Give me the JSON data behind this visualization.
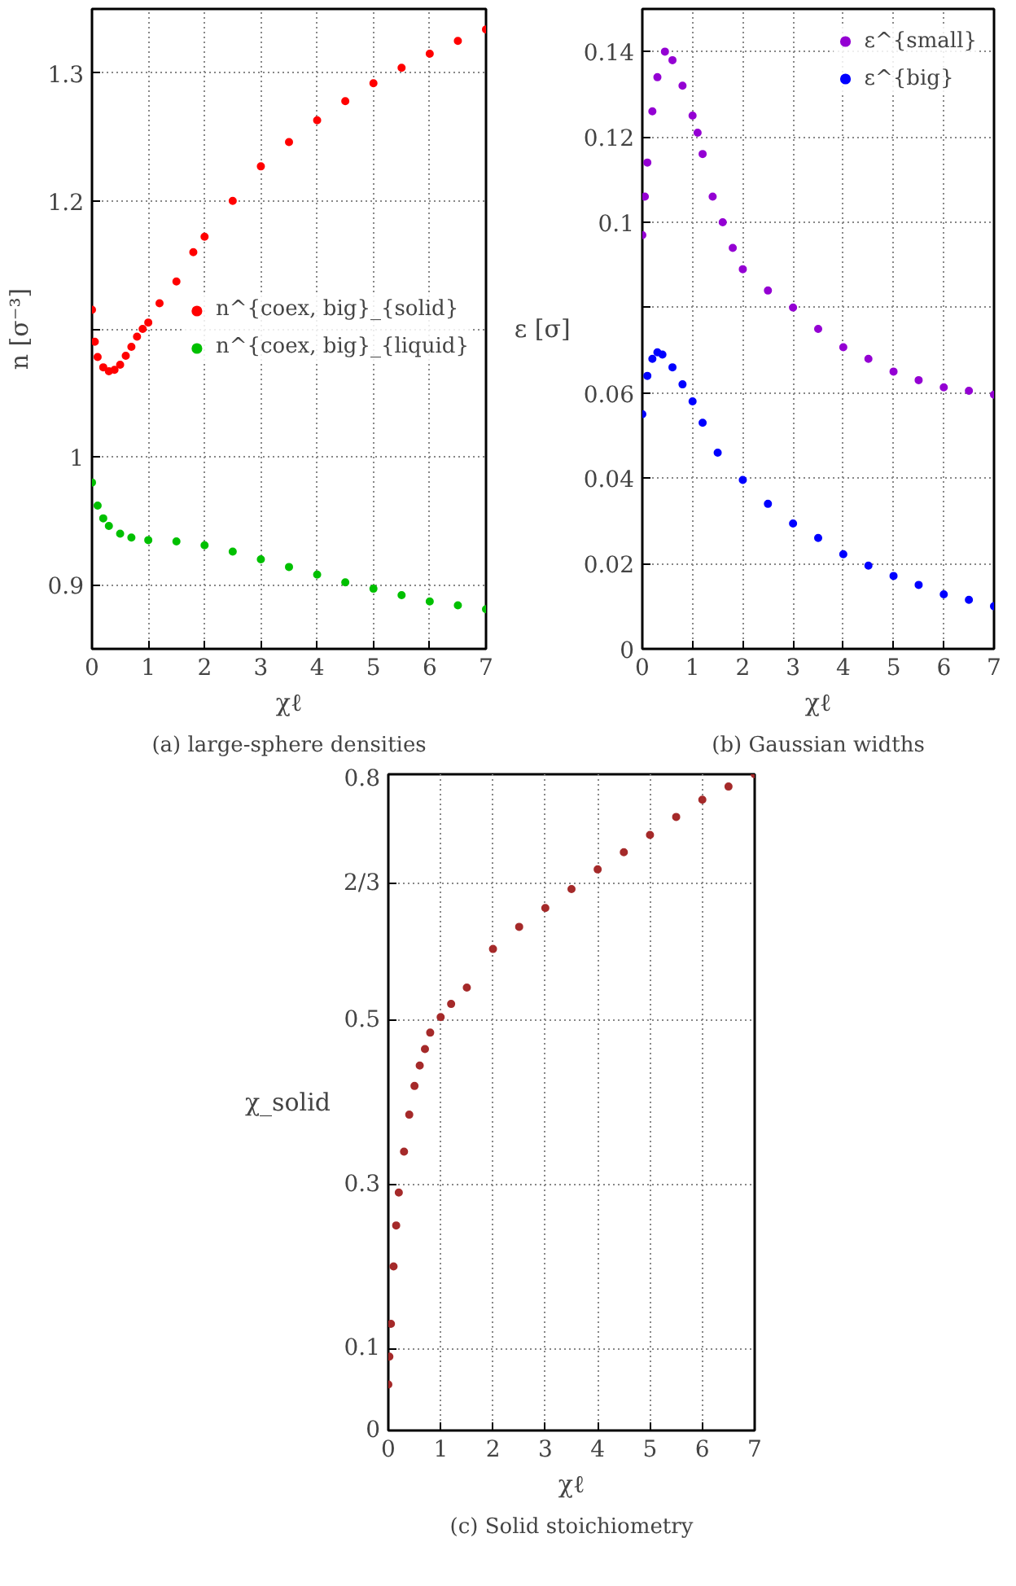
{
  "chart_data": [
    {
      "type": "scatter",
      "xlabel": "χℓ",
      "ylabel": "n [σ⁻³]",
      "annotations": [
        "(a) large-sphere densities"
      ],
      "xlim": [
        0,
        7
      ],
      "ylim": [
        0.85,
        1.35
      ],
      "xticks": [
        0,
        1,
        2,
        3,
        4,
        5,
        6,
        7
      ],
      "yticks": [
        0.9,
        1,
        {
          "value": 1.1,
          "label": null
        },
        1.2,
        1.3
      ],
      "grid": true,
      "legend": "right",
      "marker": "circle",
      "series": [
        {
          "name": "n^{coex, big}_{solid}",
          "color": "#ff0000",
          "x": [
            0,
            0.05,
            0.1,
            0.2,
            0.3,
            0.4,
            0.5,
            0.6,
            0.7,
            0.8,
            0.9,
            1.0,
            1.2,
            1.5,
            1.8,
            2,
            2.5,
            3,
            3.5,
            4,
            4.5,
            5,
            5.5,
            6,
            6.5,
            7
          ],
          "values": [
            1.115,
            1.09,
            1.078,
            1.07,
            1.067,
            1.068,
            1.072,
            1.079,
            1.086,
            1.094,
            1.1,
            1.105,
            1.12,
            1.137,
            1.16,
            1.172,
            1.2,
            1.227,
            1.246,
            1.263,
            1.278,
            1.292,
            1.304,
            1.315,
            1.325,
            1.334
          ]
        },
        {
          "name": "n^{coex, big}_{liquid}",
          "color": "#00c000",
          "x": [
            0,
            0.1,
            0.2,
            0.3,
            0.5,
            0.7,
            1,
            1.5,
            2,
            2.5,
            3,
            3.5,
            4,
            4.5,
            5,
            5.5,
            6,
            6.5,
            7
          ],
          "values": [
            0.98,
            0.962,
            0.952,
            0.946,
            0.94,
            0.937,
            0.935,
            0.934,
            0.931,
            0.926,
            0.92,
            0.914,
            0.908,
            0.902,
            0.897,
            0.892,
            0.887,
            0.884,
            0.881
          ]
        }
      ]
    },
    {
      "type": "scatter",
      "xlabel": "χℓ",
      "ylabel": "ε [σ]",
      "annotations": [
        "(b) Gaussian widths"
      ],
      "xlim": [
        0,
        7
      ],
      "ylim": [
        0,
        0.15
      ],
      "xticks": [
        0,
        1,
        2,
        3,
        4,
        5,
        6,
        7
      ],
      "yticks": [
        0,
        0.02,
        0.04,
        0.06,
        {
          "value": 0.08,
          "label": null
        },
        0.1,
        0.12,
        0.14
      ],
      "grid": true,
      "legend": "top right",
      "marker": "circle",
      "series": [
        {
          "name": "ε^{small}",
          "color": "#9400d3",
          "x": [
            0,
            0.05,
            0.1,
            0.2,
            0.3,
            0.45,
            0.6,
            0.8,
            1.0,
            1.1,
            1.2,
            1.4,
            1.6,
            1.8,
            2,
            2.5,
            3,
            3.5,
            4,
            4.5,
            5,
            5.5,
            6,
            6.5,
            7
          ],
          "values": [
            0.097,
            0.106,
            0.114,
            0.126,
            0.134,
            0.14,
            0.138,
            0.132,
            0.125,
            0.121,
            0.116,
            0.106,
            0.1,
            0.094,
            0.089,
            0.084,
            0.08,
            0.075,
            0.0707,
            0.068,
            0.065,
            0.063,
            0.0613,
            0.0605,
            0.0596
          ]
        },
        {
          "name": "ε^{big}",
          "color": "#0000ff",
          "x": [
            0,
            0.1,
            0.2,
            0.3,
            0.4,
            0.6,
            0.8,
            1.0,
            1.2,
            1.5,
            2,
            2.5,
            3,
            3.5,
            4,
            4.5,
            5,
            5.5,
            6,
            6.5,
            7
          ],
          "values": [
            0.055,
            0.064,
            0.068,
            0.0695,
            0.069,
            0.066,
            0.062,
            0.058,
            0.053,
            0.046,
            0.0396,
            0.034,
            0.0294,
            0.026,
            0.0222,
            0.0195,
            0.0171,
            0.015,
            0.0128,
            0.0115,
            0.01
          ]
        }
      ]
    },
    {
      "type": "scatter",
      "xlabel": "χℓ",
      "ylabel": "χ_solid",
      "annotations": [
        "(c) Solid stoichiometry"
      ],
      "xlim": [
        0,
        7
      ],
      "ylim": [
        0,
        0.8
      ],
      "xticks": [
        0,
        1,
        2,
        3,
        4,
        5,
        6,
        7
      ],
      "yticks": [
        0,
        0.1,
        0.3,
        0.5,
        {
          "value": 0.6667,
          "label": "2/3"
        },
        0.8
      ],
      "grid": true,
      "marker": "circle",
      "series": [
        {
          "color": "#a52a2a",
          "x": [
            0,
            0.02,
            0.05,
            0.1,
            0.15,
            0.2,
            0.3,
            0.4,
            0.5,
            0.6,
            0.7,
            0.8,
            1,
            1.2,
            1.5,
            2,
            2.5,
            3,
            3.5,
            4,
            4.5,
            5,
            5.5,
            6,
            6.5,
            7
          ],
          "values": [
            0.056,
            0.09,
            0.13,
            0.2,
            0.25,
            0.29,
            0.34,
            0.385,
            0.42,
            0.445,
            0.465,
            0.485,
            0.504,
            0.52,
            0.54,
            0.587,
            0.614,
            0.637,
            0.66,
            0.684,
            0.705,
            0.726,
            0.748,
            0.769,
            0.785,
            0.8
          ]
        }
      ]
    }
  ]
}
